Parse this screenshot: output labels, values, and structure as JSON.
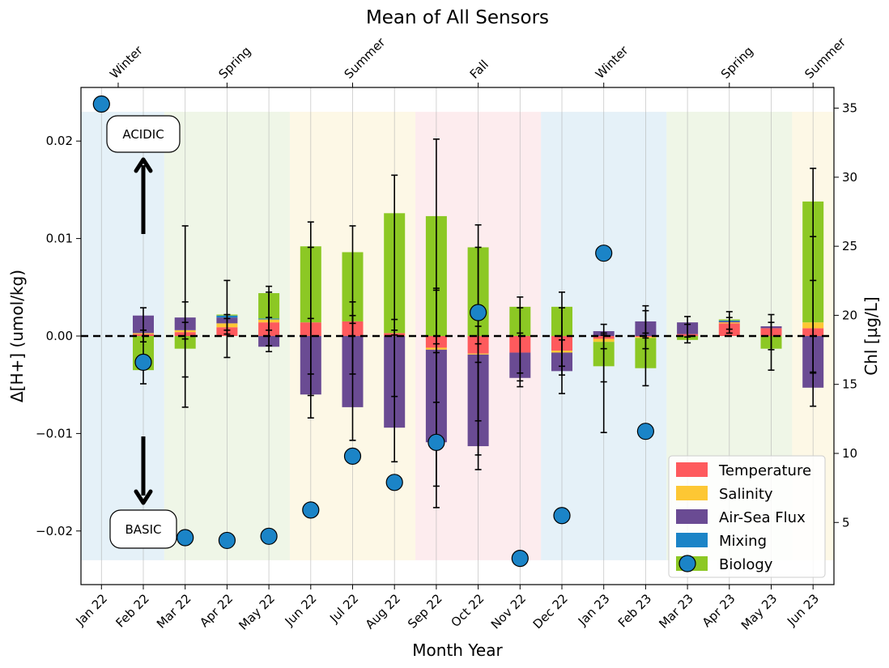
{
  "chart_data": {
    "type": "bar",
    "title": "Mean of All Sensors",
    "xlabel": "Month Year",
    "ylabel": "Δ[H+] (umol/kg)",
    "ylabel_right": "Chl [µg/L]",
    "categories": [
      "Jan 22",
      "Feb 22",
      "Mar 22",
      "Apr 22",
      "May 22",
      "Jun 22",
      "Jul 22",
      "Aug 22",
      "Sep 22",
      "Oct 22",
      "Nov 22",
      "Dec 22",
      "Jan 23",
      "Feb 23",
      "Mar 23",
      "Apr 23",
      "May 23",
      "Jun 23"
    ],
    "ylim": [
      -0.0255,
      0.0255
    ],
    "yticks": [
      -0.02,
      -0.01,
      0.0,
      0.01,
      0.02
    ],
    "ytick_labels": [
      "−0.02",
      "−0.01",
      "0.00",
      "0.01",
      "0.02"
    ],
    "ylim_right": [
      0.5,
      36.5
    ],
    "yticks_right": [
      5,
      10,
      15,
      20,
      25,
      30,
      35
    ],
    "reference_line_y": 0,
    "seasons": [
      {
        "name": "Winter",
        "start": -0.5,
        "end": 1.5,
        "color": "#cfe5f2"
      },
      {
        "name": "Spring",
        "start": 1.5,
        "end": 4.5,
        "color": "#e2efd4"
      },
      {
        "name": "Summer",
        "start": 4.5,
        "end": 7.5,
        "color": "#fcf3d2"
      },
      {
        "name": "Fall",
        "start": 7.5,
        "end": 10.5,
        "color": "#fbdde0"
      },
      {
        "name": "Winter",
        "start": 10.5,
        "end": 13.5,
        "color": "#cfe5f2"
      },
      {
        "name": "Spring",
        "start": 13.5,
        "end": 16.5,
        "color": "#e2efd4"
      },
      {
        "name": "Summer",
        "start": 16.5,
        "end": 17.5,
        "color": "#fcf3d2"
      }
    ],
    "season_labels": [
      {
        "text": "Winter",
        "at": 0.4
      },
      {
        "text": "Spring",
        "at": 3.0
      },
      {
        "text": "Summer",
        "at": 6.0
      },
      {
        "text": "Fall",
        "at": 9.0
      },
      {
        "text": "Winter",
        "at": 12.0
      },
      {
        "text": "Spring",
        "at": 15.0
      },
      {
        "text": "Summer",
        "at": 17.0
      }
    ],
    "series": [
      {
        "name": "Temperature",
        "color": "#fe5a5d",
        "values": [
          0,
          0.0002,
          0.0004,
          0.0009,
          0.0014,
          0.0014,
          0.0015,
          0.0003,
          -0.0012,
          -0.0018,
          -0.0017,
          -0.0015,
          -0.0003,
          -0.0001,
          0.0002,
          0.0013,
          0.0008,
          0.0008
        ]
      },
      {
        "name": "Salinity",
        "color": "#fdc734",
        "values": [
          0,
          0.0001,
          0.0002,
          0.0004,
          0.0003,
          0,
          0,
          0,
          -0.0002,
          -0.0001,
          0,
          -0.0002,
          -0.0003,
          -0.0001,
          0,
          0.0001,
          0,
          0.0006
        ]
      },
      {
        "name": "Air-Sea Flux",
        "color": "#6a4b93",
        "values": [
          0,
          0.0018,
          0.0013,
          0.0006,
          -0.0011,
          -0.006,
          -0.0073,
          -0.0094,
          -0.0095,
          -0.0094,
          -0.0026,
          -0.0019,
          0.0005,
          0.0015,
          0.0012,
          0.0001,
          0.0002,
          -0.0053
        ]
      },
      {
        "name": "Mixing",
        "color": "#1b84c7",
        "values": [
          0,
          0,
          0,
          0.0002,
          0.0001,
          0,
          0,
          0,
          0,
          0,
          0,
          0,
          0,
          0,
          0,
          0.0001,
          0,
          0
        ]
      },
      {
        "name": "Biology",
        "color": "#8cc824",
        "values": [
          0,
          -0.0035,
          -0.0013,
          0.0001,
          0.0026,
          0.0078,
          0.0071,
          0.0123,
          0.0123,
          0.0091,
          0.003,
          0.003,
          -0.0025,
          -0.0031,
          -0.0004,
          0.0001,
          -0.0013,
          0.0124
        ]
      }
    ],
    "error_bars": [
      [],
      [
        [
          -0.0049,
          0.0029
        ],
        [
          -0.0006,
          0.0006
        ]
      ],
      [
        [
          -0.0073,
          0.0113
        ],
        [
          -0.0042,
          0.0035
        ],
        [
          -0.0003,
          0.0014
        ]
      ],
      [
        [
          -0.0022,
          0.0057
        ],
        [
          0.0002,
          0.0022
        ],
        [
          0.0006,
          0.0018
        ]
      ],
      [
        [
          -0.0016,
          0.0051
        ],
        [
          -0.001,
          0.0045
        ],
        [
          0.0006,
          0.0019
        ]
      ],
      [
        [
          -0.0084,
          0.0117
        ],
        [
          -0.0061,
          0.0018
        ],
        [
          -0.0039,
          0.0091
        ]
      ],
      [
        [
          -0.0107,
          0.0113
        ],
        [
          -0.0039,
          0.0035
        ],
        [
          0.0013,
          0.0021
        ]
      ],
      [
        [
          -0.0129,
          0.0165
        ],
        [
          -0.0062,
          0.0017
        ],
        [
          0.0001,
          0.0006
        ]
      ],
      [
        [
          -0.0176,
          0.0202
        ],
        [
          -0.0154,
          0.0047
        ],
        [
          -0.0068,
          0.0049
        ],
        [
          -0.0017,
          -0.0008
        ]
      ],
      [
        [
          -0.0137,
          0.0114
        ],
        [
          -0.0122,
          0.0091
        ],
        [
          -0.0087,
          0.001
        ],
        [
          -0.0027,
          -0.0008
        ]
      ],
      [
        [
          -0.0052,
          0.004
        ],
        [
          -0.0046,
          0.0029
        ],
        [
          -0.0038,
          0.0003
        ]
      ],
      [
        [
          -0.0059,
          0.0045
        ],
        [
          -0.004,
          0.0029
        ],
        [
          -0.0031,
          -0.0004
        ]
      ],
      [
        [
          -0.0099,
          0.0012
        ],
        [
          -0.0047,
          0.0003
        ],
        [
          -0.0013,
          0.0001
        ]
      ],
      [
        [
          -0.0051,
          0.0031
        ],
        [
          -0.0013,
          0.0026
        ],
        [
          -0.0002,
          0.0003
        ]
      ],
      [
        [
          -0.0007,
          0.002
        ],
        [
          -0.0001,
          0.0012
        ]
      ],
      [
        [
          0.0003,
          0.0025
        ],
        [
          0.0007,
          0.0019
        ]
      ],
      [
        [
          -0.0035,
          0.0022
        ],
        [
          -0.0014,
          0.0014
        ]
      ],
      [
        [
          -0.0072,
          0.0172
        ],
        [
          -0.0038,
          0.0057
        ],
        [
          -0.0037,
          0.0102
        ]
      ]
    ],
    "chl": [
      35.3,
      16.6,
      3.9,
      3.7,
      4.0,
      5.9,
      9.8,
      7.9,
      10.8,
      20.2,
      2.4,
      5.5,
      24.5,
      11.6,
      null,
      null,
      null,
      null
    ],
    "chl_label": "Chl",
    "chl_color": "#1b84c7",
    "legend": {
      "position": "lower-right",
      "entries": [
        "Temperature",
        "Salinity",
        "Air-Sea Flux",
        "Mixing",
        "Biology"
      ]
    },
    "annotations": {
      "acidic": "ACIDIC",
      "basic": "BASIC"
    }
  }
}
